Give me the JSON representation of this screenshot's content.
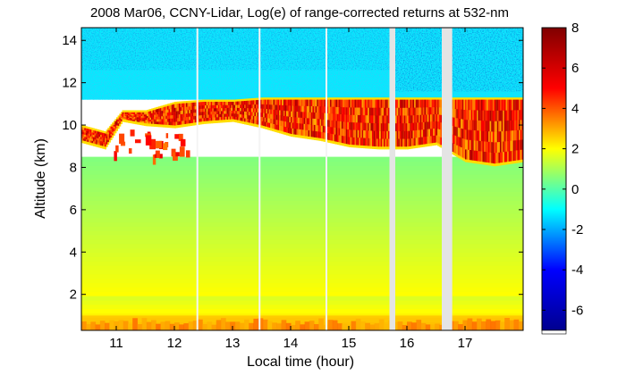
{
  "chart_data": {
    "type": "heatmap",
    "title": "2008 Mar06, CCNY-Lidar, Log(e) of range-corrected returns at 532-nm",
    "xlabel": "Local time (hour)",
    "ylabel": "Altitude (km)",
    "xlim": [
      10.4,
      18.0
    ],
    "ylim": [
      0.3,
      14.6
    ],
    "xticks": [
      11,
      12,
      13,
      14,
      15,
      16,
      17
    ],
    "yticks": [
      2,
      4,
      6,
      8,
      10,
      12,
      14
    ],
    "colorbar": {
      "ticks": [
        -6,
        -4,
        -2,
        0,
        2,
        4,
        6,
        8
      ],
      "range": [
        -7,
        8
      ],
      "colormap": [
        "#00008f",
        "#0000ff",
        "#00ffff",
        "#ffff00",
        "#ff0000",
        "#800000"
      ]
    },
    "layers": [
      {
        "name": "noise",
        "x_range": [
          10.4,
          18.0
        ],
        "altitude_range": [
          11.2,
          14.6
        ],
        "value_range": [
          -6,
          2
        ]
      },
      {
        "name": "cirrus",
        "x_range": [
          10.4,
          18.0
        ],
        "altitude_range": [
          8.2,
          11.3
        ],
        "value_range": [
          3,
          7
        ]
      },
      {
        "name": "free-troposphere",
        "x_range": [
          10.4,
          18.0
        ],
        "altitude_range": [
          2.0,
          8.5
        ],
        "value_range": [
          0.5,
          2
        ]
      },
      {
        "name": "boundary-layer",
        "x_range": [
          10.4,
          18.0
        ],
        "altitude_range": [
          0.3,
          2.0
        ],
        "value_range": [
          1.5,
          3.5
        ]
      }
    ],
    "cloud_base_km": [
      {
        "x": 10.4,
        "base": 9.3,
        "top": 9.9
      },
      {
        "x": 10.8,
        "base": 9.0,
        "top": 9.6
      },
      {
        "x": 11.1,
        "base": 10.3,
        "top": 10.6
      },
      {
        "x": 11.5,
        "base": 10.1,
        "top": 10.6
      },
      {
        "x": 12.0,
        "base": 10.0,
        "top": 11.0
      },
      {
        "x": 12.5,
        "base": 10.2,
        "top": 11.1
      },
      {
        "x": 13.0,
        "base": 10.3,
        "top": 11.1
      },
      {
        "x": 13.5,
        "base": 10.0,
        "top": 11.2
      },
      {
        "x": 14.0,
        "base": 9.6,
        "top": 11.2
      },
      {
        "x": 14.5,
        "base": 9.4,
        "top": 11.2
      },
      {
        "x": 15.0,
        "base": 9.1,
        "top": 11.2
      },
      {
        "x": 15.5,
        "base": 9.0,
        "top": 11.2
      },
      {
        "x": 16.0,
        "base": 9.0,
        "top": 11.2
      },
      {
        "x": 16.5,
        "base": 9.2,
        "top": 11.2
      },
      {
        "x": 17.0,
        "base": 8.4,
        "top": 11.2
      },
      {
        "x": 17.5,
        "base": 8.2,
        "top": 11.2
      },
      {
        "x": 18.0,
        "base": 8.4,
        "top": 11.2
      }
    ],
    "data_gaps": [
      {
        "x": 12.38,
        "width_hours": 0.02
      },
      {
        "x": 13.45,
        "width_hours": 0.02
      },
      {
        "x": 14.6,
        "width_hours": 0.02
      },
      {
        "x": 15.7,
        "width_hours": 0.1
      },
      {
        "x": 16.6,
        "width_hours": 0.18
      }
    ]
  }
}
